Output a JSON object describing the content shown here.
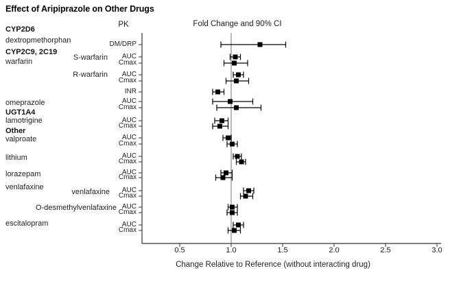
{
  "chart_data": {
    "type": "forest",
    "title": "Effect of Aripiprazole on Other Drugs",
    "column_headers": [
      "PK",
      "Fold Change and 90% CI"
    ],
    "xlabel": "Change Relative to Reference (without interacting drug)",
    "x_ticks": [
      "0.5",
      "1.0",
      "1.5",
      "2.0",
      "2.5",
      "3.0"
    ],
    "xlim": [
      0.13,
      3.04
    ],
    "reference_line": 1.0,
    "ci_level": "90%",
    "marker": "filled-square",
    "grid": false,
    "colors": {
      "marker": "#000000",
      "ci": "#000000",
      "reference_line": "#b8b8b8",
      "axis": "#333333",
      "text": "#1f1f1f"
    },
    "side_labels": [
      {
        "text": "CYP2D6",
        "bold": true
      },
      {
        "text": "dextropmethorphan",
        "bold": false
      },
      {
        "text": "CYP2C9, 2C19",
        "bold": true
      },
      {
        "text": "warfarin",
        "bold": false
      },
      {
        "text": "S-warfarin",
        "bold": false
      },
      {
        "text": "R-warfarin",
        "bold": false
      },
      {
        "text": "omeprazole",
        "bold": false
      },
      {
        "text": "UGT1A4",
        "bold": true
      },
      {
        "text": "lamotrigine",
        "bold": false
      },
      {
        "text": "Other",
        "bold": true
      },
      {
        "text": "valproate",
        "bold": false
      },
      {
        "text": "lithium",
        "bold": false
      },
      {
        "text": "lorazepam",
        "bold": false
      },
      {
        "text": "venlafaxine",
        "bold": false
      },
      {
        "text": "venlafaxine",
        "bold": false
      },
      {
        "text": "O-desmethylvenlafaxine",
        "bold": false
      },
      {
        "text": "escitalopram",
        "bold": false
      }
    ],
    "rows": [
      {
        "drug": "dextropmethorphan",
        "metric": "DM/DRP",
        "value": 1.28,
        "lo": 0.9,
        "hi": 1.53
      },
      {
        "drug": "S-warfarin",
        "metric": "AUC",
        "value": 1.04,
        "lo": 0.99,
        "hi": 1.09
      },
      {
        "drug": "S-warfarin",
        "metric": "Cmax",
        "value": 1.03,
        "lo": 0.93,
        "hi": 1.16
      },
      {
        "drug": "R-warfarin",
        "metric": "AUC",
        "value": 1.07,
        "lo": 1.02,
        "hi": 1.12
      },
      {
        "drug": "R-warfarin",
        "metric": "Cmax",
        "value": 1.05,
        "lo": 0.95,
        "hi": 1.17
      },
      {
        "drug": "warfarin",
        "metric": "INR",
        "value": 0.87,
        "lo": 0.82,
        "hi": 0.93
      },
      {
        "drug": "omeprazole",
        "metric": "AUC",
        "value": 0.99,
        "lo": 0.82,
        "hi": 1.21
      },
      {
        "drug": "omeprazole",
        "metric": "Cmax",
        "value": 1.05,
        "lo": 0.86,
        "hi": 1.29
      },
      {
        "drug": "lamotrigine",
        "metric": "AUC",
        "value": 0.91,
        "lo": 0.84,
        "hi": 0.97
      },
      {
        "drug": "lamotrigine",
        "metric": "Cmax",
        "value": 0.89,
        "lo": 0.82,
        "hi": 0.97
      },
      {
        "drug": "valproate",
        "metric": "AUC",
        "value": 0.97,
        "lo": 0.92,
        "hi": 1.0
      },
      {
        "drug": "valproate",
        "metric": "Cmax",
        "value": 1.01,
        "lo": 0.96,
        "hi": 1.06
      },
      {
        "drug": "lithium",
        "metric": "AUC",
        "value": 1.06,
        "lo": 1.02,
        "hi": 1.1
      },
      {
        "drug": "lithium",
        "metric": "Cmax",
        "value": 1.1,
        "lo": 1.05,
        "hi": 1.14
      },
      {
        "drug": "lorazepam",
        "metric": "AUC",
        "value": 0.95,
        "lo": 0.9,
        "hi": 1.01
      },
      {
        "drug": "lorazepam",
        "metric": "Cmax",
        "value": 0.92,
        "lo": 0.85,
        "hi": 1.01
      },
      {
        "drug": "venlafaxine",
        "metric": "AUC",
        "value": 1.17,
        "lo": 1.12,
        "hi": 1.22
      },
      {
        "drug": "venlafaxine",
        "metric": "Cmax",
        "value": 1.14,
        "lo": 1.09,
        "hi": 1.21
      },
      {
        "drug": "O-desmethylvenlafaxine",
        "metric": "AUC",
        "value": 1.01,
        "lo": 0.97,
        "hi": 1.06
      },
      {
        "drug": "O-desmethylvenlafaxine",
        "metric": "Cmax",
        "value": 1.01,
        "lo": 0.96,
        "hi": 1.06
      },
      {
        "drug": "escitalopram",
        "metric": "AUC",
        "value": 1.07,
        "lo": 1.02,
        "hi": 1.12
      },
      {
        "drug": "escitalopram",
        "metric": "Cmax",
        "value": 1.03,
        "lo": 0.97,
        "hi": 1.09
      }
    ]
  }
}
